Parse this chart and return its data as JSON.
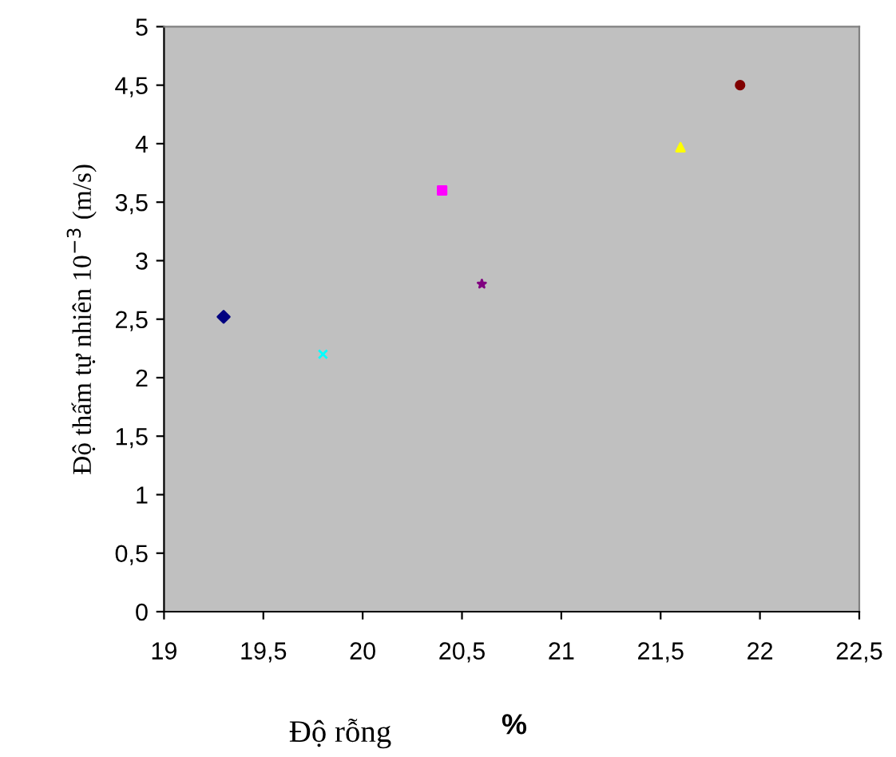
{
  "chart_data": {
    "type": "scatter",
    "xlabel": "Độ rỗng",
    "annotations": [
      "%"
    ],
    "ylabel": "Độ thấm tự nhiên 10$^{−3}$ (m/s)",
    "series": [
      {
        "x": [
          19.3
        ],
        "values": [
          2.52
        ],
        "color": "#000080",
        "marker": "diamond"
      },
      {
        "x": [
          19.8
        ],
        "values": [
          2.2
        ],
        "color": "#00ffff",
        "marker": "cross"
      },
      {
        "x": [
          20.4
        ],
        "values": [
          3.6
        ],
        "color": "#ff00ff",
        "marker": "square"
      },
      {
        "x": [
          20.6
        ],
        "values": [
          2.8
        ],
        "color": "#800080",
        "marker": "star"
      },
      {
        "x": [
          21.6
        ],
        "values": [
          3.97
        ],
        "color": "#ffff00",
        "marker": "triangle"
      },
      {
        "x": [
          21.9
        ],
        "values": [
          4.5
        ],
        "color": "#800000",
        "marker": "circle"
      }
    ],
    "xlim": [
      19,
      22.5
    ],
    "xticks": [
      19,
      {
        "value": 19.5,
        "label": "19,5"
      },
      20,
      {
        "value": 20.5,
        "label": "20,5"
      },
      21,
      {
        "value": 21.5,
        "label": "21,5"
      },
      22,
      {
        "value": 22.5,
        "label": "22,5"
      }
    ],
    "ylim": [
      0,
      5
    ],
    "yticks": [
      0,
      {
        "value": 0.5,
        "label": "0,5"
      },
      1,
      {
        "value": 1.5,
        "label": "1,5"
      },
      2,
      {
        "value": 2.5,
        "label": "2,5"
      },
      3,
      {
        "value": 3.5,
        "label": "3,5"
      },
      4,
      {
        "value": 4.5,
        "label": "4,5"
      },
      5
    ],
    "grid": false,
    "legend": false
  }
}
